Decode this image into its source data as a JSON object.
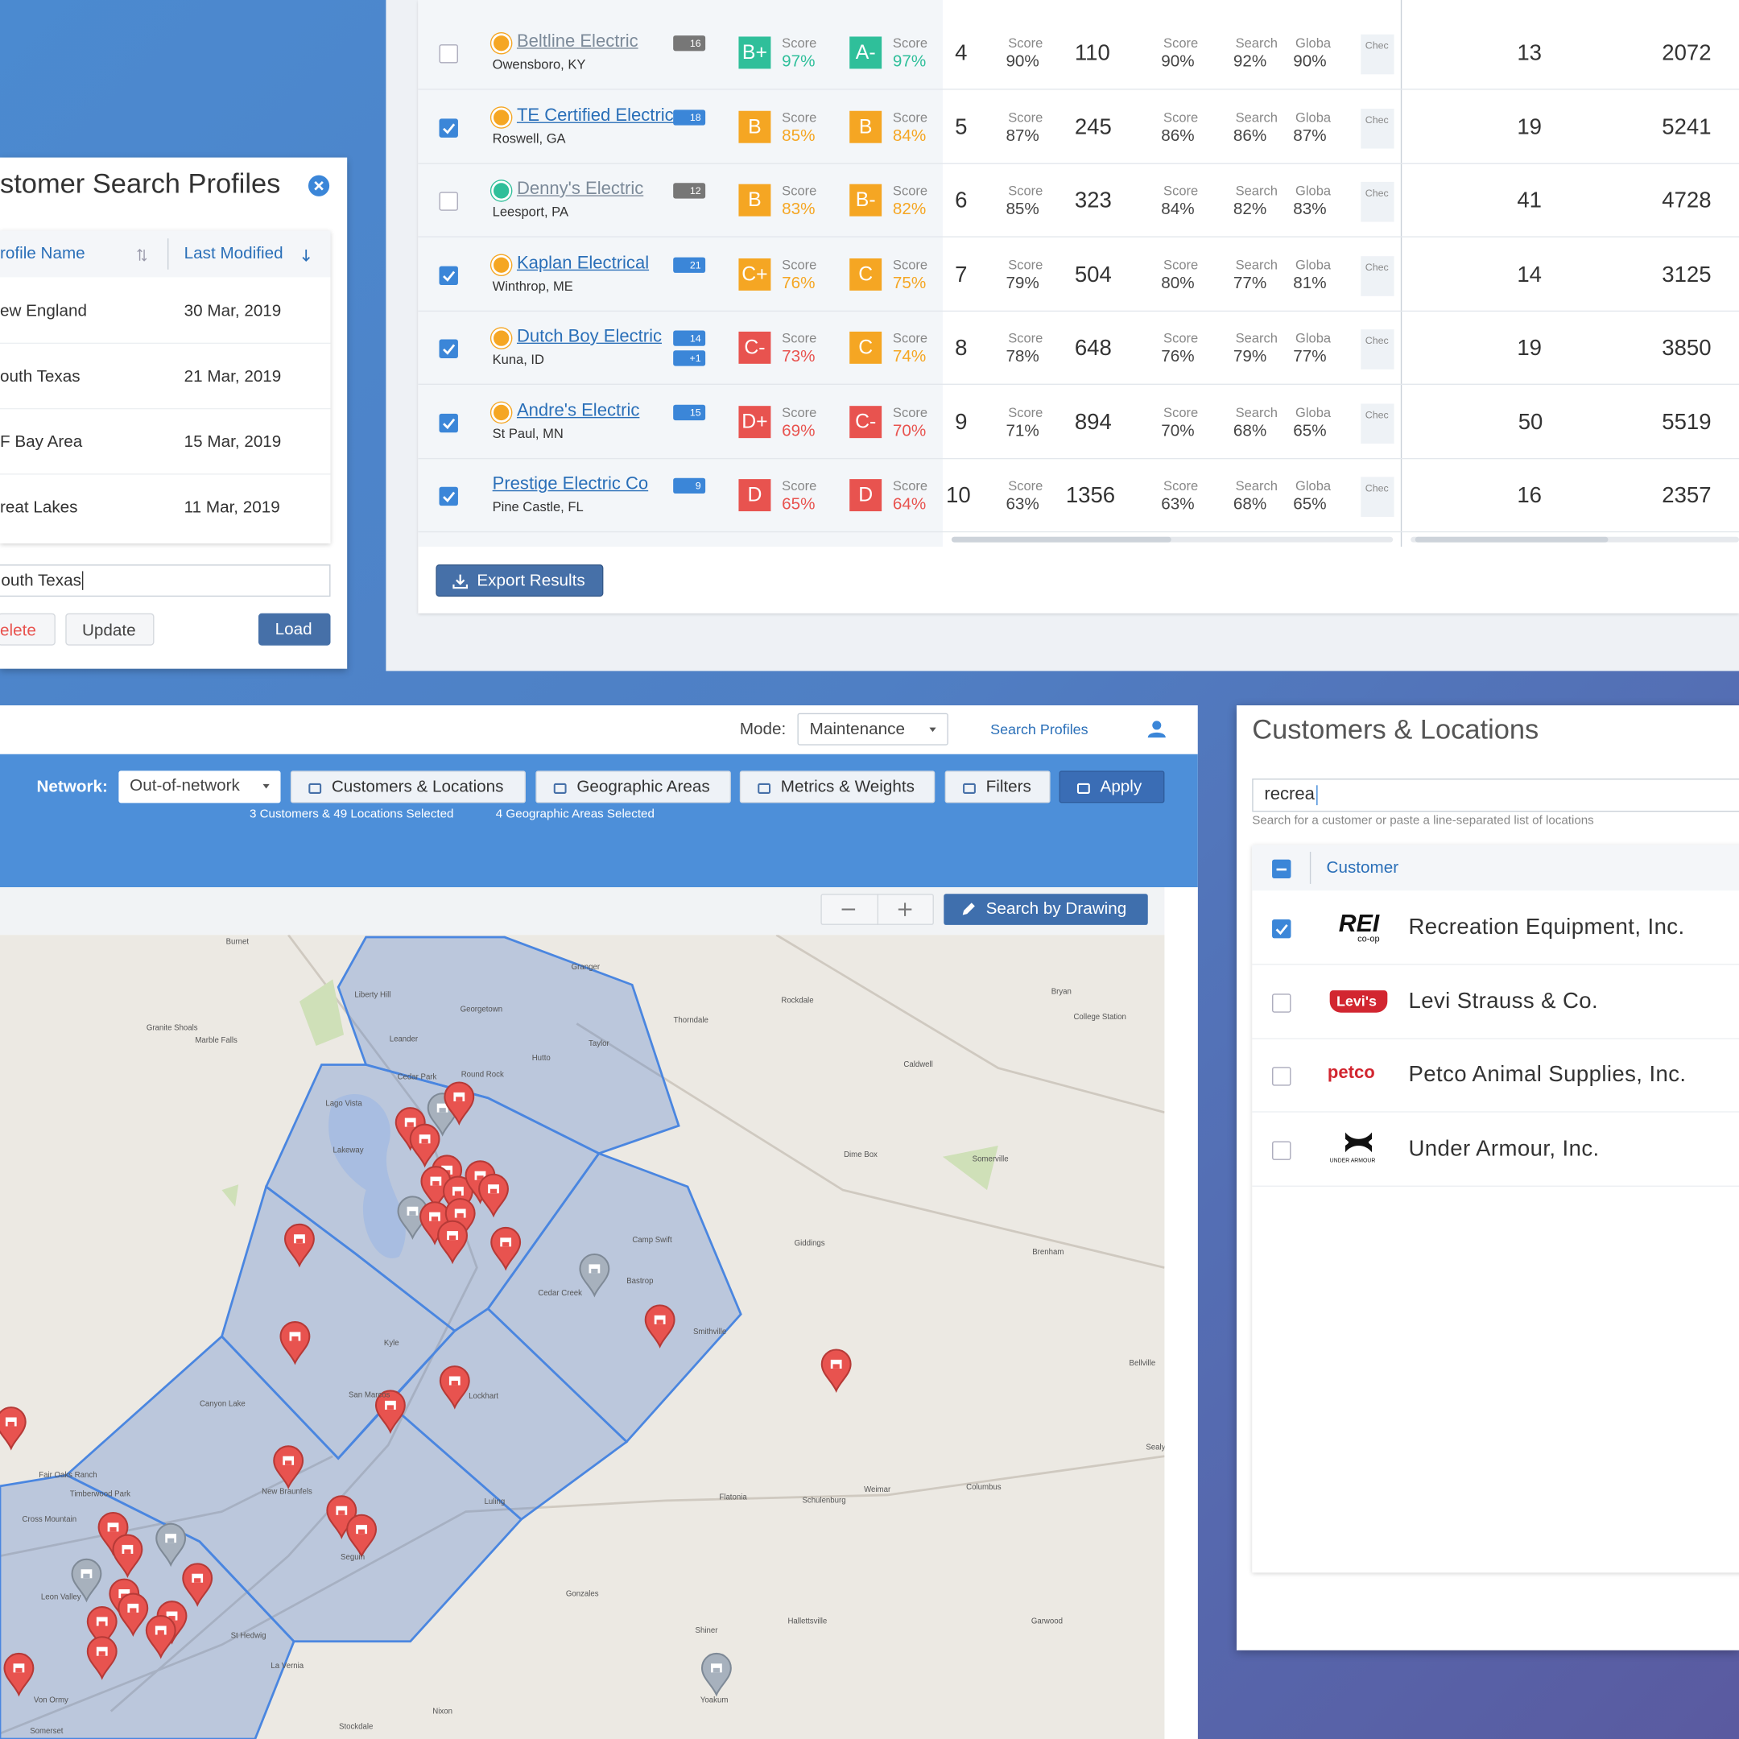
{
  "search_profiles": {
    "title": "stomer Search Profiles",
    "columns": [
      "rofile Name",
      "Last Modified"
    ],
    "rows": [
      {
        "name": "ew England",
        "modified": "30 Mar, 2019"
      },
      {
        "name": "outh Texas",
        "modified": "21 Mar, 2019"
      },
      {
        "name": "F Bay Area",
        "modified": "15 Mar, 2019"
      },
      {
        "name": "reat Lakes",
        "modified": "11 Mar, 2019"
      }
    ],
    "input": "outh Texas",
    "buttons": {
      "delete": "elete",
      "update": "Update",
      "load": "Load"
    }
  },
  "results": {
    "grade_label": "Score",
    "metric_labels": [
      "Score",
      "Score",
      "Search",
      "Globa",
      "Chec"
    ],
    "export": "Export Results",
    "rows": [
      {
        "checked": false,
        "icon_color": "#f5a623",
        "name": "Beltline Electric",
        "location": "Owensboro, KY",
        "badges": [
          "16"
        ],
        "grades": [
          {
            "grade": "B+",
            "score": "97%",
            "color": "#2fbf9a"
          },
          {
            "grade": "A-",
            "score": "97%",
            "color": "#2fbf9a"
          }
        ],
        "rank": "4",
        "metrics": [
          "90%",
          "110",
          "90%",
          "92%",
          "90%"
        ],
        "tail": [
          "13",
          "2072"
        ]
      },
      {
        "checked": true,
        "icon_color": "#f5a623",
        "name": "TE Certified Electric",
        "location": "Roswell, GA",
        "badges": [
          "18"
        ],
        "grades": [
          {
            "grade": "B",
            "score": "85%",
            "color": "#f5a623"
          },
          {
            "grade": "B",
            "score": "84%",
            "color": "#f5a623"
          }
        ],
        "rank": "5",
        "metrics": [
          "87%",
          "245",
          "86%",
          "86%",
          "87%"
        ],
        "tail": [
          "19",
          "5241"
        ]
      },
      {
        "checked": false,
        "icon_color": "#2fbf9a",
        "name": "Denny's Electric",
        "location": "Leesport, PA",
        "badges": [
          "12"
        ],
        "grades": [
          {
            "grade": "B",
            "score": "83%",
            "color": "#f5a623"
          },
          {
            "grade": "B-",
            "score": "82%",
            "color": "#f5a623"
          }
        ],
        "rank": "6",
        "metrics": [
          "85%",
          "323",
          "84%",
          "82%",
          "83%"
        ],
        "tail": [
          "41",
          "4728"
        ]
      },
      {
        "checked": true,
        "icon_color": "#f5a623",
        "name": "Kaplan Electrical",
        "location": "Winthrop, ME",
        "badges": [
          "21"
        ],
        "grades": [
          {
            "grade": "C+",
            "score": "76%",
            "color": "#f5a623"
          },
          {
            "grade": "C",
            "score": "75%",
            "color": "#f5a623"
          }
        ],
        "rank": "7",
        "metrics": [
          "79%",
          "504",
          "80%",
          "77%",
          "81%"
        ],
        "tail": [
          "14",
          "3125"
        ]
      },
      {
        "checked": true,
        "icon_color": "#f5a623",
        "name": "Dutch Boy Electric",
        "location": "Kuna, ID",
        "badges": [
          "14",
          "+1"
        ],
        "grades": [
          {
            "grade": "C-",
            "score": "73%",
            "color": "#e8534f"
          },
          {
            "grade": "C",
            "score": "74%",
            "color": "#f5a623"
          }
        ],
        "rank": "8",
        "metrics": [
          "78%",
          "648",
          "76%",
          "79%",
          "77%"
        ],
        "tail": [
          "19",
          "3850"
        ]
      },
      {
        "checked": true,
        "icon_color": "#f5a623",
        "name": "Andre's Electric",
        "location": "St Paul, MN",
        "badges": [
          "15"
        ],
        "grades": [
          {
            "grade": "D+",
            "score": "69%",
            "color": "#e8534f"
          },
          {
            "grade": "C-",
            "score": "70%",
            "color": "#e8534f"
          }
        ],
        "rank": "9",
        "metrics": [
          "71%",
          "894",
          "70%",
          "68%",
          "65%"
        ],
        "tail": [
          "50",
          "5519"
        ]
      },
      {
        "checked": true,
        "name": "Prestige Electric Co",
        "location": "Pine Castle, FL",
        "badges": [
          "9"
        ],
        "grades": [
          {
            "grade": "D",
            "score": "65%",
            "color": "#e8534f"
          },
          {
            "grade": "D",
            "score": "64%",
            "color": "#e8534f"
          }
        ],
        "rank": "10",
        "metrics": [
          "63%",
          "1356",
          "63%",
          "68%",
          "65%"
        ],
        "tail": [
          "16",
          "2357"
        ]
      }
    ]
  },
  "toolbar": {
    "mode_label": "Mode:",
    "mode": "Maintenance",
    "search_profiles": "Search Profiles",
    "network_label": "Network:",
    "network": "Out-of-network",
    "buttons": [
      "Customers & Locations",
      "Geographic Areas",
      "Metrics & Weights",
      "Filters",
      "Apply"
    ],
    "selected": [
      "3 Customers & 49 Locations Selected",
      "4 Geographic Areas Selected"
    ],
    "draw": "Search by Drawing"
  },
  "map": {
    "labels": [
      "Burnet",
      "Liberty Hill",
      "Georgetown",
      "Granger",
      "Thorndale",
      "Rockdale",
      "Taylor",
      "Leander",
      "Cedar Park",
      "Round Rock",
      "Hutto",
      "Granite Shoals",
      "Marble Falls",
      "Lago Vista",
      "Lakeway",
      "Caldwell",
      "Bryan",
      "College Station",
      "Dime Box",
      "Somerville",
      "Giddings",
      "Camp Swift",
      "Bastrop",
      "Cedar Creek",
      "Smithville",
      "Kyle",
      "San Marcos",
      "Lockhart",
      "Luling",
      "New Braunfels",
      "Seguin",
      "Flatonia",
      "Schulenburg",
      "Weimar",
      "Columbus",
      "Sealy",
      "Bellville",
      "Brenham",
      "Gonzales",
      "Hallettsville",
      "Shiner",
      "Yoakum",
      "Garwood",
      "Canyon Lake",
      "Fair Oaks Ranch",
      "Timberwood Park",
      "Cross Mountain",
      "Leon Valley",
      "St Hedwig",
      "La Vernia",
      "Stockdale",
      "Nixon",
      "Somerset",
      "Von Ormy"
    ]
  },
  "customers": {
    "title": "Customers & Locations",
    "input": "recrea",
    "hint": "Search for a customer or paste a line-separated list of locations",
    "header": "Customer",
    "rows": [
      {
        "checked": true,
        "logo": "REI",
        "logo_sub": "co-op",
        "name": "Recreation Equipment, Inc."
      },
      {
        "checked": false,
        "logo": "Levi's",
        "name": "Levi Strauss & Co."
      },
      {
        "checked": false,
        "logo": "petco",
        "name": "Petco Animal Supplies, Inc."
      },
      {
        "checked": false,
        "logo_sub": "UNDER ARMOUR",
        "name": "Under Armour, Inc."
      }
    ]
  }
}
